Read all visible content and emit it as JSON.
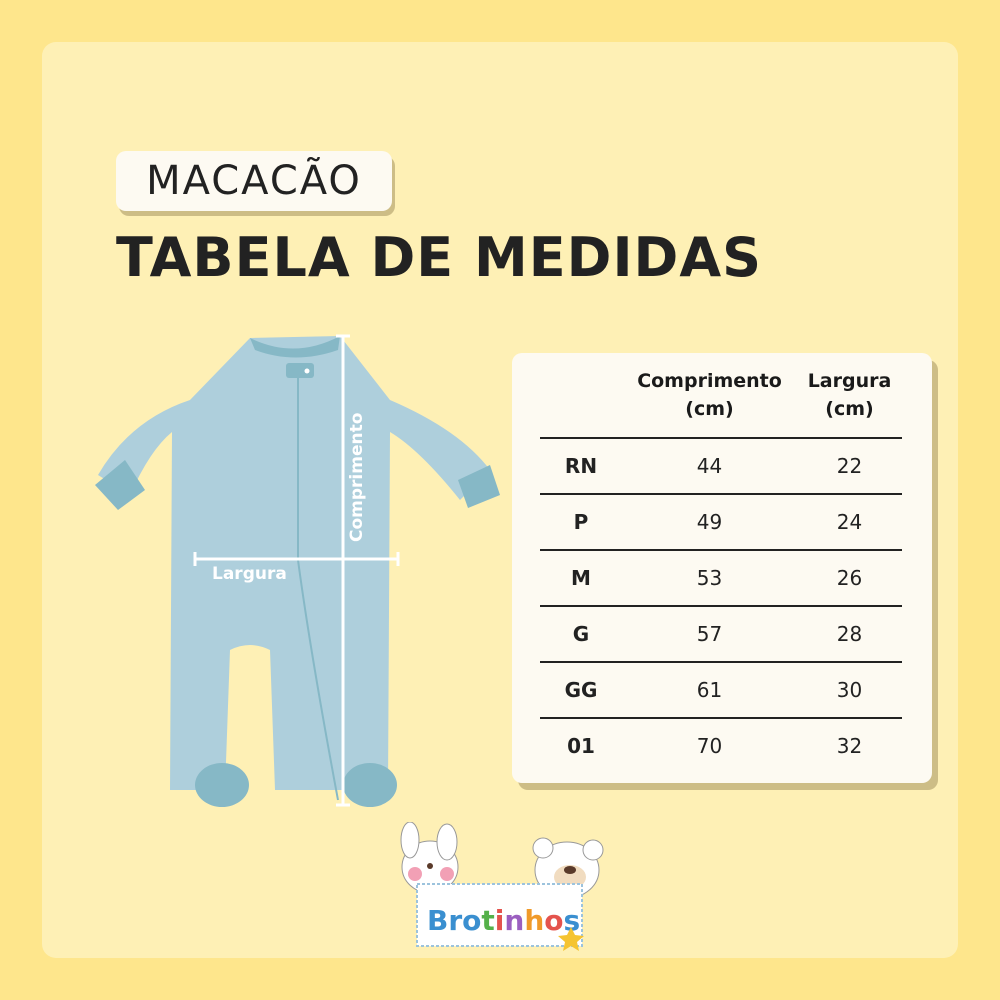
{
  "subtitle": "MACACÃO",
  "title": "TABELA DE MEDIDAS",
  "diagram": {
    "length_label": "Comprimento",
    "width_label": "Largura"
  },
  "table": {
    "headers": [
      {
        "line1": "Comprimento",
        "line2": "(cm)"
      },
      {
        "line1": "Largura",
        "line2": "(cm)"
      }
    ],
    "rows": [
      {
        "size": "RN",
        "length": "44",
        "width": "22"
      },
      {
        "size": "P",
        "length": "49",
        "width": "24"
      },
      {
        "size": "M",
        "length": "53",
        "width": "26"
      },
      {
        "size": "G",
        "length": "57",
        "width": "28"
      },
      {
        "size": "GG",
        "length": "61",
        "width": "30"
      },
      {
        "size": "01",
        "length": "70",
        "width": "32"
      }
    ]
  },
  "logo": {
    "text": "Brotinhos"
  },
  "colors": {
    "background": "#fee68c",
    "panel": "#fef0b5",
    "romper": "#aecfdc",
    "cuff": "#86b8c6"
  }
}
